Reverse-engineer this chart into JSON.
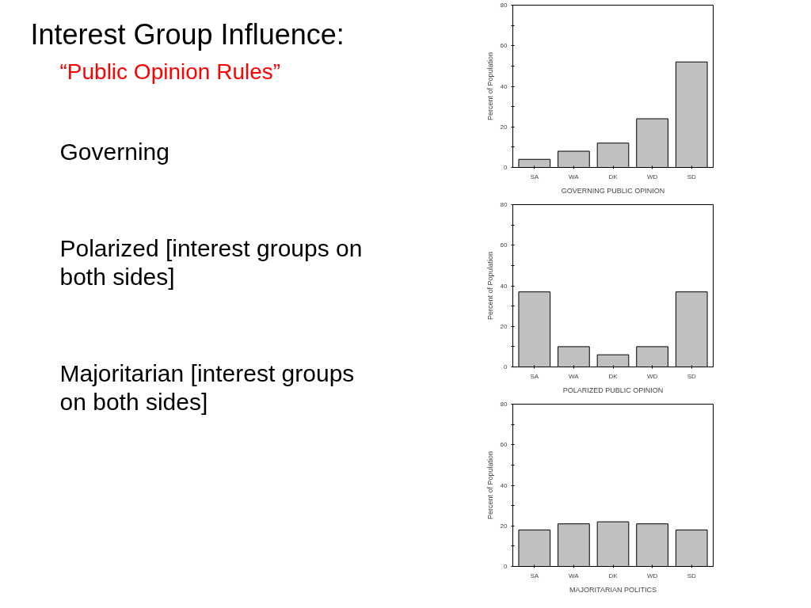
{
  "chart_data": [
    {
      "type": "other",
      "title": "Interest Group Influence:",
      "subtitle": "“Public Opinion Rules”",
      "annotations": [
        "Governing",
        "Polarized [interest groups on both sides]",
        "Majoritarian [interest groups on both sides]"
      ]
    },
    {
      "type": "bar",
      "xlabel": "GOVERNING PUBLIC OPINION",
      "ylabel": "Percent of Population",
      "categories": [
        "SA",
        "WA",
        "DK",
        "WD",
        "SD"
      ],
      "values": [
        4,
        8,
        12,
        24,
        52
      ],
      "color": "#c0c0c0",
      "ylim": [
        0,
        80
      ],
      "yticks": [
        0,
        {
          "value": 10,
          "label": null
        },
        20,
        {
          "value": 30,
          "label": null
        },
        40,
        {
          "value": 50,
          "label": null
        },
        60,
        {
          "value": 70,
          "label": null
        },
        80
      ]
    },
    {
      "type": "bar",
      "xlabel": "POLARIZED PUBLIC OPINION",
      "ylabel": "Percent of Population",
      "categories": [
        "SA",
        "WA",
        "DK",
        "WD",
        "SD"
      ],
      "values": [
        37,
        10,
        6,
        10,
        37
      ],
      "color": "#c0c0c0",
      "ylim": [
        0,
        80
      ],
      "yticks": [
        0,
        {
          "value": 10,
          "label": null
        },
        20,
        {
          "value": 30,
          "label": null
        },
        40,
        {
          "value": 50,
          "label": null
        },
        60,
        {
          "value": 70,
          "label": null
        },
        80
      ]
    },
    {
      "type": "bar",
      "xlabel": "MAJORITARIAN POLITICS",
      "ylabel": "Percent of Population",
      "categories": [
        "SA",
        "WA",
        "DK",
        "WD",
        "SD"
      ],
      "values": [
        18,
        21,
        22,
        21,
        18
      ],
      "color": "#c0c0c0",
      "ylim": [
        0,
        80
      ],
      "yticks": [
        0,
        {
          "value": 10,
          "label": null
        },
        20,
        {
          "value": 30,
          "label": null
        },
        40,
        {
          "value": 50,
          "label": null
        },
        60,
        {
          "value": 70,
          "label": null
        },
        80
      ]
    }
  ]
}
